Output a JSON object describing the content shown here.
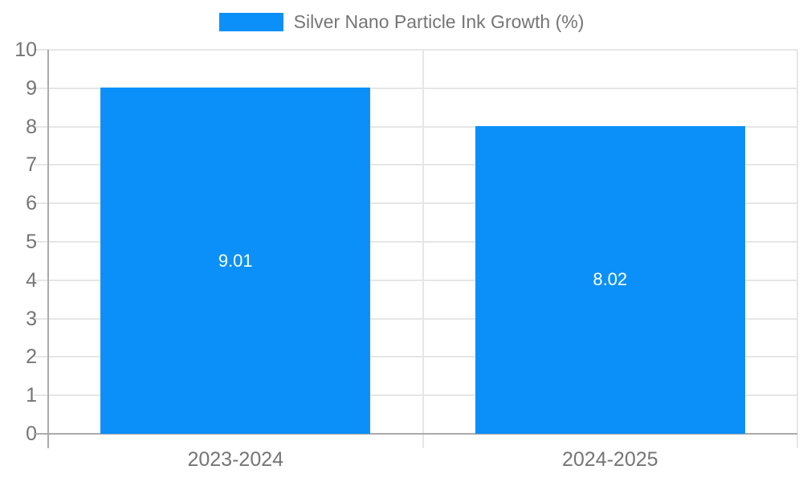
{
  "chart_data": {
    "type": "bar",
    "title": "",
    "legend": {
      "label": "Silver Nano Particle Ink Growth (%)",
      "position": "top-center"
    },
    "categories": [
      "2023-2024",
      "2024-2025"
    ],
    "series": [
      {
        "name": "Silver Nano Particle Ink Growth (%)",
        "values": [
          9.01,
          8.02
        ]
      }
    ],
    "value_labels": [
      "9.01",
      "8.02"
    ],
    "ylim": [
      0,
      10
    ],
    "yticks": [
      0,
      1,
      2,
      3,
      4,
      5,
      6,
      7,
      8,
      9,
      10
    ],
    "grid": true,
    "colors": {
      "bar": "#0a90f8",
      "axis": "#ababab",
      "grid": "#e6e6e6",
      "label_text": "#757575",
      "value_label_text": "#ffffff"
    }
  }
}
